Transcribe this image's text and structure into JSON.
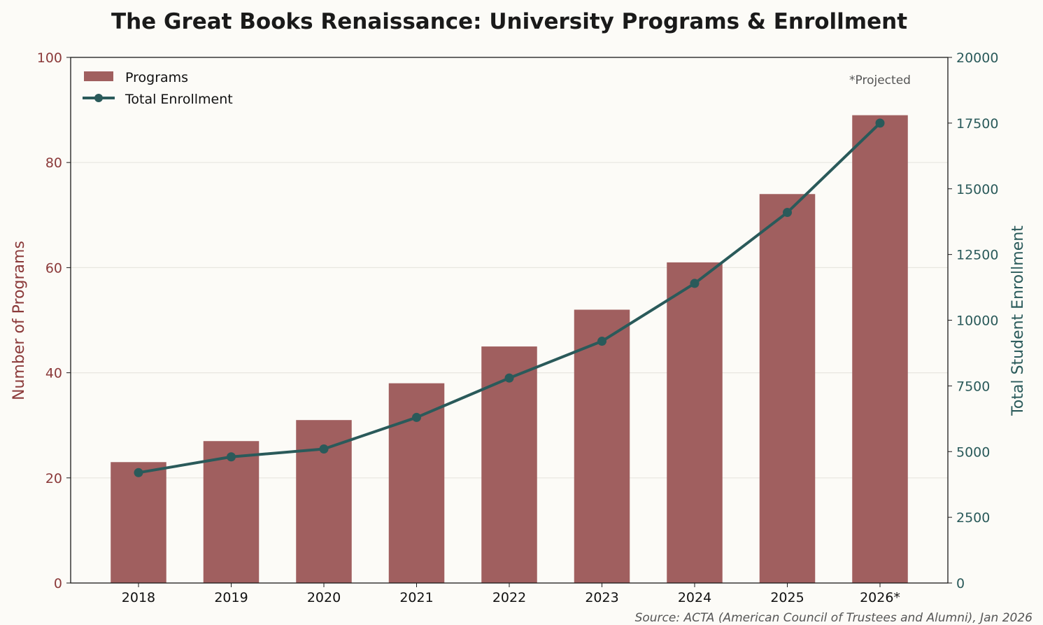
{
  "chart_data": {
    "type": "bar+line",
    "title": "The Great Books Renaissance: University Programs & Enrollment",
    "categories": [
      "2018",
      "2019",
      "2020",
      "2021",
      "2022",
      "2023",
      "2024",
      "2025",
      "2026*"
    ],
    "series": [
      {
        "name": "Programs",
        "type": "bar",
        "axis": "left",
        "color": "#a05f5f",
        "values": [
          23,
          27,
          31,
          38,
          45,
          52,
          61,
          74,
          89
        ]
      },
      {
        "name": "Total Enrollment",
        "type": "line",
        "axis": "right",
        "color": "#2a5a5a",
        "values": [
          4200,
          4800,
          5100,
          6300,
          7800,
          9200,
          11400,
          14100,
          17500
        ]
      }
    ],
    "ylabel_left": "Number of Programs",
    "ylabel_right": "Total Student Enrollment",
    "ylim_left": [
      0,
      100
    ],
    "ylim_right": [
      0,
      20000
    ],
    "yticks_left": [
      "0",
      "20",
      "40",
      "60",
      "80",
      "100"
    ],
    "yticks_right": [
      "0",
      "2500",
      "5000",
      "7500",
      "10000",
      "12500",
      "15000",
      "17500",
      "20000"
    ],
    "left_axis_color": "#8b3a3a",
    "right_axis_color": "#2a5a5a",
    "grid": "horizontal",
    "legend": "top-left",
    "annotation": "*Projected",
    "source": "Source: ACTA (American Council of Trustees and Alumni), Jan 2026"
  }
}
